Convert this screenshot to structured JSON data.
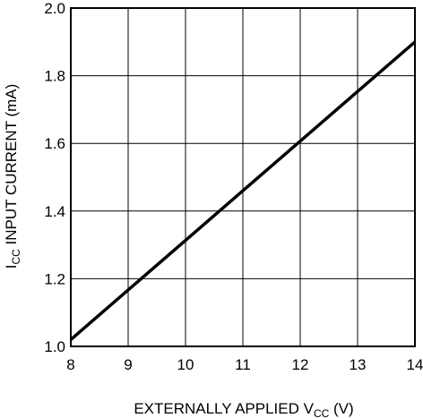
{
  "chart_data": {
    "type": "line",
    "title": "",
    "xlabel_main": "EXTERNALLY APPLIED V",
    "xlabel_sub": "CC",
    "xlabel_tail": " (V)",
    "ylabel_main": "I",
    "ylabel_sub": "CC",
    "ylabel_tail": " INPUT CURRENT (mA)",
    "xlim": [
      8,
      14
    ],
    "ylim": [
      1.0,
      2.0
    ],
    "x_ticks": [
      "8",
      "9",
      "10",
      "11",
      "12",
      "13",
      "14"
    ],
    "y_ticks": [
      "1.0",
      "1.2",
      "1.4",
      "1.6",
      "1.8",
      "2.0"
    ],
    "grid": true,
    "series": [
      {
        "x": [
          8,
          14
        ],
        "y": [
          1.02,
          1.9
        ]
      }
    ]
  }
}
